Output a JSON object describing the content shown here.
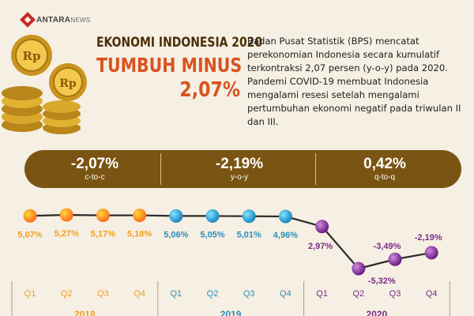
{
  "logo": {
    "brand": "ANTARA",
    "suffix": "NEWS"
  },
  "headline": {
    "line1": "EKONOMI INDONESIA 2020",
    "line2": "TUMBUH MINUS",
    "line3": "2,07%"
  },
  "coin_label": "Rp",
  "description": "Badan Pusat Statistik (BPS) mencatat perekonomian Indonesia secara kumulatif terkontraksi 2,07 persen (y-o-y) pada 2020. Pandemi COVID-19 membuat Indonesia mengalami resesi setelah mengalami pertumbuhan ekonomi negatif pada triwulan II dan III.",
  "stats": [
    {
      "value": "-2,07%",
      "label": "c-to-c"
    },
    {
      "value": "-2,19%",
      "label": "y-o-y"
    },
    {
      "value": "0,42%",
      "label": "q-to-q"
    }
  ],
  "colors": {
    "background": "#f6efe3",
    "band": "#7a5412",
    "headline_orange": "#d9531e",
    "y2018": "#f0a020",
    "y2019": "#2a8fb8",
    "y2020": "#7b2a8c"
  },
  "chart_data": {
    "type": "line",
    "quarters": [
      "Q1",
      "Q2",
      "Q3",
      "Q4",
      "Q1",
      "Q2",
      "Q3",
      "Q4",
      "Q1",
      "Q2",
      "Q3",
      "Q4"
    ],
    "years": [
      "2018",
      "2019",
      "2020"
    ],
    "values": [
      5.07,
      5.27,
      5.17,
      5.18,
      5.06,
      5.05,
      5.01,
      4.96,
      2.97,
      -5.32,
      -3.49,
      -2.19
    ],
    "value_labels": [
      "5,07%",
      "5,27%",
      "5,17%",
      "5,18%",
      "5,06%",
      "5,05%",
      "5,01%",
      "4,96%",
      "2,97%",
      "-5,32%",
      "-3,49%",
      "-2,19%"
    ],
    "series_year_index": [
      0,
      0,
      0,
      0,
      1,
      1,
      1,
      1,
      2,
      2,
      2,
      2
    ],
    "unit": "%"
  }
}
